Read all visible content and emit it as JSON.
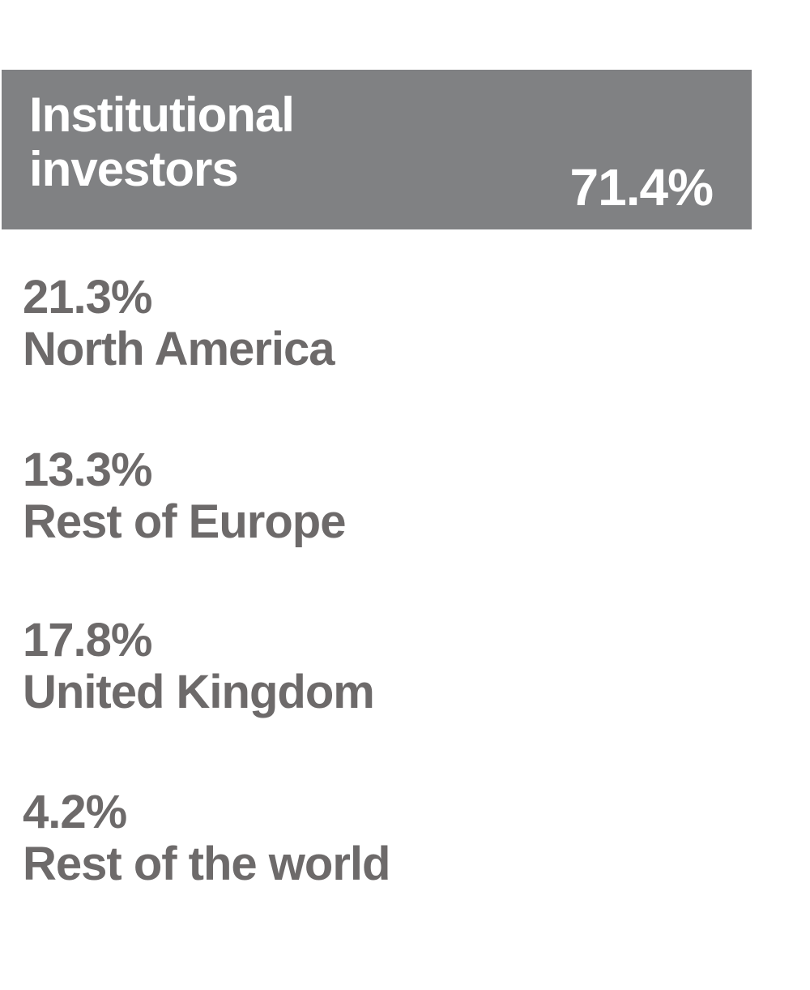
{
  "header": {
    "label": "Institutional investors",
    "value": "71.4%"
  },
  "items": [
    {
      "value": "21.3%",
      "label": "North America"
    },
    {
      "value": "13.3%",
      "label": "Rest of Europe"
    },
    {
      "value": "17.8%",
      "label": "United Kingdom"
    },
    {
      "value": "4.2%",
      "label": "Rest of the world"
    }
  ]
}
